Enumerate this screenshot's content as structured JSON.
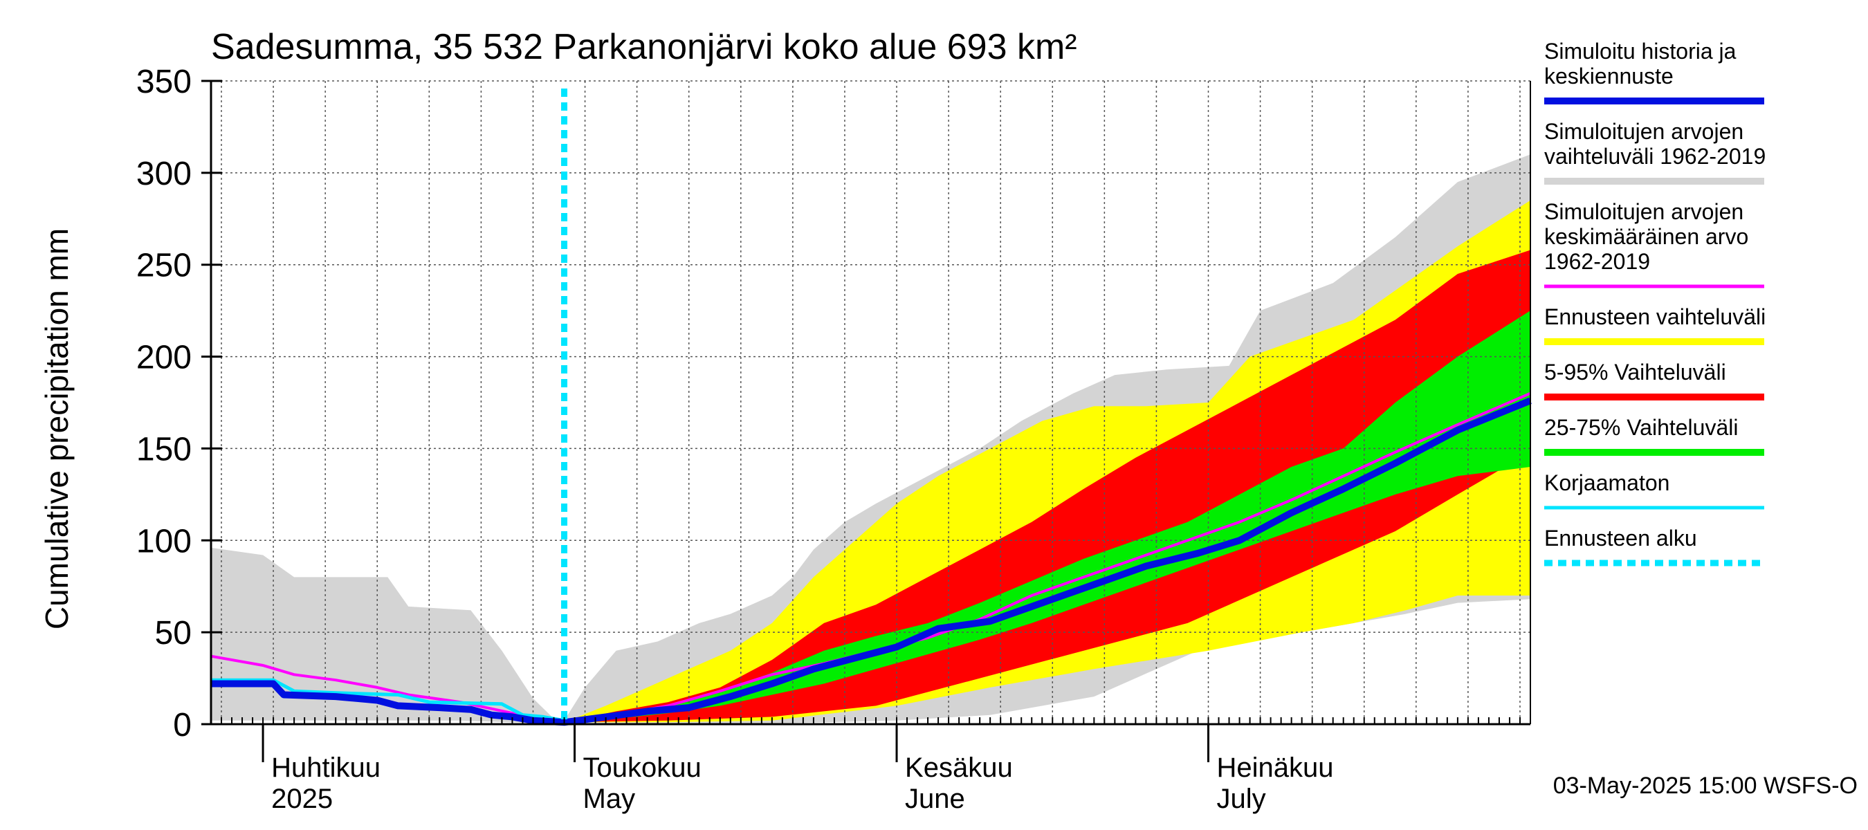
{
  "chart_data": {
    "type": "area",
    "title": "Sadesumma, 35 532 Parkanonjärvi koko alue 693 km²",
    "ylabel": "Cumulative precipitation   mm",
    "ylim": [
      0,
      350
    ],
    "yticks": [
      "0",
      "50",
      "100",
      "150",
      "200",
      "250",
      "300",
      "350"
    ],
    "xlim": [
      "2025-03-27",
      "2025-08-01"
    ],
    "month_labels": [
      {
        "top": "Huhtikuu",
        "bottom": "2025",
        "date": "2025-04-01"
      },
      {
        "top": "Toukokuu",
        "bottom": "May",
        "date": "2025-05-01"
      },
      {
        "top": "Kesäkuu",
        "bottom": "June",
        "date": "2025-06-01"
      },
      {
        "top": "Heinäkuu",
        "bottom": "July",
        "date": "2025-07-01"
      }
    ],
    "month_boundaries": [
      "2025-04-01",
      "2025-05-01",
      "2025-06-01",
      "2025-07-01"
    ],
    "forecast_start": "2025-04-30",
    "timestamp": "03-May-2025 15:00 WSFS-O",
    "grid": true,
    "legend_position": "right",
    "legend": [
      {
        "key": "hist",
        "label": "Simuloitu historia ja\nkeskiennuste",
        "color": "#0010e0",
        "style": "line"
      },
      {
        "key": "range_all",
        "label": "Simuloitujen arvojen\nvaihteluväli 1962-2019",
        "color": "#d4d4d4",
        "style": "line"
      },
      {
        "key": "mean",
        "label": "Simuloitujen arvojen\nkeskimääräinen arvo\n   1962-2019",
        "color": "#ff00ff",
        "style": "line"
      },
      {
        "key": "fc_range",
        "label": "Ennusteen vaihteluväli",
        "color": "#ffff00",
        "style": "line"
      },
      {
        "key": "p5_95",
        "label": "5-95% Vaihteluväli",
        "color": "#ff0000",
        "style": "line"
      },
      {
        "key": "p25_75",
        "label": "25-75% Vaihteluväli",
        "color": "#00ee00",
        "style": "line"
      },
      {
        "key": "raw",
        "label": "Korjaamaton",
        "color": "#00e5ff",
        "style": "line"
      },
      {
        "key": "fc_start",
        "label": "Ennusteen alku",
        "color": "#00e5ff",
        "style": "dotted"
      }
    ],
    "bands": [
      {
        "key": "range_all",
        "color": "#d4d4d4",
        "upper": [
          [
            "2025-03-27",
            96
          ],
          [
            "2025-04-01",
            92
          ],
          [
            "2025-04-04",
            80
          ],
          [
            "2025-04-13",
            80
          ],
          [
            "2025-04-15",
            64
          ],
          [
            "2025-04-21",
            62
          ],
          [
            "2025-04-24",
            40
          ],
          [
            "2025-04-27",
            14
          ],
          [
            "2025-04-29",
            3
          ],
          [
            "2025-04-30",
            2
          ],
          [
            "2025-05-02",
            20
          ],
          [
            "2025-05-05",
            40
          ],
          [
            "2025-05-09",
            45
          ],
          [
            "2025-05-13",
            55
          ],
          [
            "2025-05-16",
            60
          ],
          [
            "2025-05-20",
            70
          ],
          [
            "2025-05-22",
            80
          ],
          [
            "2025-05-24",
            95
          ],
          [
            "2025-05-27",
            110
          ],
          [
            "2025-05-30",
            120
          ],
          [
            "2025-06-04",
            135
          ],
          [
            "2025-06-09",
            150
          ],
          [
            "2025-06-13",
            165
          ],
          [
            "2025-06-18",
            180
          ],
          [
            "2025-06-22",
            190
          ],
          [
            "2025-06-27",
            193
          ],
          [
            "2025-07-03",
            195
          ],
          [
            "2025-07-06",
            225
          ],
          [
            "2025-07-13",
            240
          ],
          [
            "2025-07-19",
            265
          ],
          [
            "2025-07-25",
            295
          ],
          [
            "2025-08-01",
            310
          ]
        ],
        "lower": [
          [
            "2025-03-27",
            2
          ],
          [
            "2025-04-20",
            2
          ],
          [
            "2025-04-30",
            0
          ],
          [
            "2025-05-15",
            0
          ],
          [
            "2025-05-25",
            1
          ],
          [
            "2025-06-01",
            2
          ],
          [
            "2025-06-10",
            5
          ],
          [
            "2025-06-20",
            15
          ],
          [
            "2025-06-30",
            40
          ],
          [
            "2025-07-05",
            45
          ],
          [
            "2025-07-15",
            55
          ],
          [
            "2025-07-20",
            60
          ],
          [
            "2025-07-25",
            66
          ],
          [
            "2025-08-01",
            68
          ]
        ]
      },
      {
        "key": "fc_range",
        "color": "#ffff00",
        "upper": [
          [
            "2025-04-30",
            1
          ],
          [
            "2025-05-04",
            10
          ],
          [
            "2025-05-08",
            20
          ],
          [
            "2025-05-12",
            30
          ],
          [
            "2025-05-16",
            40
          ],
          [
            "2025-05-20",
            55
          ],
          [
            "2025-05-24",
            80
          ],
          [
            "2025-05-28",
            100
          ],
          [
            "2025-06-01",
            120
          ],
          [
            "2025-06-05",
            135
          ],
          [
            "2025-06-10",
            150
          ],
          [
            "2025-06-15",
            165
          ],
          [
            "2025-06-20",
            173
          ],
          [
            "2025-06-25",
            173
          ],
          [
            "2025-07-01",
            175
          ],
          [
            "2025-07-05",
            200
          ],
          [
            "2025-07-10",
            210
          ],
          [
            "2025-07-15",
            220
          ],
          [
            "2025-07-20",
            240
          ],
          [
            "2025-07-25",
            260
          ],
          [
            "2025-08-01",
            285
          ]
        ],
        "lower": [
          [
            "2025-04-30",
            1
          ],
          [
            "2025-05-10",
            1
          ],
          [
            "2025-05-20",
            2
          ],
          [
            "2025-06-01",
            10
          ],
          [
            "2025-06-10",
            20
          ],
          [
            "2025-06-20",
            30
          ],
          [
            "2025-07-01",
            40
          ],
          [
            "2025-07-10",
            50
          ],
          [
            "2025-07-15",
            55
          ],
          [
            "2025-07-20",
            62
          ],
          [
            "2025-07-25",
            70
          ],
          [
            "2025-08-01",
            70
          ]
        ]
      },
      {
        "key": "p5_95",
        "color": "#ff0000",
        "upper": [
          [
            "2025-04-30",
            1
          ],
          [
            "2025-05-05",
            7
          ],
          [
            "2025-05-10",
            12
          ],
          [
            "2025-05-15",
            20
          ],
          [
            "2025-05-20",
            35
          ],
          [
            "2025-05-25",
            55
          ],
          [
            "2025-05-30",
            65
          ],
          [
            "2025-06-04",
            80
          ],
          [
            "2025-06-09",
            95
          ],
          [
            "2025-06-14",
            110
          ],
          [
            "2025-06-19",
            128
          ],
          [
            "2025-06-24",
            145
          ],
          [
            "2025-06-29",
            160
          ],
          [
            "2025-07-04",
            175
          ],
          [
            "2025-07-09",
            190
          ],
          [
            "2025-07-14",
            205
          ],
          [
            "2025-07-19",
            220
          ],
          [
            "2025-07-25",
            245
          ],
          [
            "2025-08-01",
            258
          ]
        ],
        "lower": [
          [
            "2025-04-30",
            1
          ],
          [
            "2025-05-10",
            2
          ],
          [
            "2025-05-20",
            4
          ],
          [
            "2025-05-30",
            10
          ],
          [
            "2025-06-09",
            25
          ],
          [
            "2025-06-19",
            40
          ],
          [
            "2025-06-29",
            55
          ],
          [
            "2025-07-09",
            80
          ],
          [
            "2025-07-19",
            105
          ],
          [
            "2025-07-25",
            125
          ],
          [
            "2025-08-01",
            148
          ]
        ]
      },
      {
        "key": "p25_75",
        "color": "#00ee00",
        "upper": [
          [
            "2025-04-30",
            1
          ],
          [
            "2025-05-05",
            5
          ],
          [
            "2025-05-10",
            10
          ],
          [
            "2025-05-15",
            18
          ],
          [
            "2025-05-20",
            28
          ],
          [
            "2025-05-25",
            40
          ],
          [
            "2025-05-30",
            48
          ],
          [
            "2025-06-04",
            55
          ],
          [
            "2025-06-09",
            66
          ],
          [
            "2025-06-14",
            78
          ],
          [
            "2025-06-19",
            90
          ],
          [
            "2025-06-24",
            100
          ],
          [
            "2025-06-29",
            110
          ],
          [
            "2025-07-04",
            125
          ],
          [
            "2025-07-09",
            140
          ],
          [
            "2025-07-14",
            150
          ],
          [
            "2025-07-19",
            175
          ],
          [
            "2025-07-25",
            200
          ],
          [
            "2025-08-01",
            225
          ]
        ],
        "lower": [
          [
            "2025-04-30",
            1
          ],
          [
            "2025-05-05",
            3
          ],
          [
            "2025-05-10",
            6
          ],
          [
            "2025-05-15",
            10
          ],
          [
            "2025-05-20",
            16
          ],
          [
            "2025-05-25",
            22
          ],
          [
            "2025-05-30",
            30
          ],
          [
            "2025-06-04",
            38
          ],
          [
            "2025-06-09",
            46
          ],
          [
            "2025-06-14",
            55
          ],
          [
            "2025-06-19",
            65
          ],
          [
            "2025-06-24",
            75
          ],
          [
            "2025-06-29",
            85
          ],
          [
            "2025-07-04",
            95
          ],
          [
            "2025-07-09",
            105
          ],
          [
            "2025-07-14",
            115
          ],
          [
            "2025-07-19",
            125
          ],
          [
            "2025-07-25",
            135
          ],
          [
            "2025-08-01",
            140
          ]
        ]
      }
    ],
    "series": [
      {
        "key": "mean",
        "color": "#ff00ff",
        "points": [
          [
            "2025-03-27",
            37
          ],
          [
            "2025-04-01",
            32
          ],
          [
            "2025-04-04",
            27
          ],
          [
            "2025-04-08",
            24
          ],
          [
            "2025-04-12",
            20
          ],
          [
            "2025-04-15",
            16
          ],
          [
            "2025-04-20",
            12
          ],
          [
            "2025-04-25",
            6
          ],
          [
            "2025-04-29",
            2
          ],
          [
            "2025-04-30",
            1
          ],
          [
            "2025-05-05",
            5
          ],
          [
            "2025-05-10",
            10
          ],
          [
            "2025-05-15",
            18
          ],
          [
            "2025-05-20",
            27
          ],
          [
            "2025-05-25",
            33
          ],
          [
            "2025-05-30",
            40
          ],
          [
            "2025-06-04",
            47
          ],
          [
            "2025-06-09",
            57
          ],
          [
            "2025-06-14",
            70
          ],
          [
            "2025-06-19",
            80
          ],
          [
            "2025-06-24",
            90
          ],
          [
            "2025-06-29",
            100
          ],
          [
            "2025-07-04",
            110
          ],
          [
            "2025-07-09",
            122
          ],
          [
            "2025-07-14",
            135
          ],
          [
            "2025-07-19",
            148
          ],
          [
            "2025-07-25",
            163
          ],
          [
            "2025-08-01",
            180
          ]
        ]
      },
      {
        "key": "raw",
        "color": "#00e5ff",
        "points": [
          [
            "2025-03-27",
            24
          ],
          [
            "2025-04-02",
            24
          ],
          [
            "2025-04-04",
            18
          ],
          [
            "2025-04-08",
            17
          ],
          [
            "2025-04-14",
            16
          ],
          [
            "2025-04-17",
            12
          ],
          [
            "2025-04-24",
            11
          ],
          [
            "2025-04-26",
            5
          ],
          [
            "2025-04-28",
            4
          ],
          [
            "2025-04-30",
            2
          ]
        ]
      },
      {
        "key": "hist",
        "color": "#0010e0",
        "points": [
          [
            "2025-03-27",
            22
          ],
          [
            "2025-04-02",
            22
          ],
          [
            "2025-04-03",
            16
          ],
          [
            "2025-04-08",
            15
          ],
          [
            "2025-04-12",
            13
          ],
          [
            "2025-04-14",
            10
          ],
          [
            "2025-04-18",
            9
          ],
          [
            "2025-04-21",
            8
          ],
          [
            "2025-04-23",
            5
          ],
          [
            "2025-04-25",
            4
          ],
          [
            "2025-04-27",
            2
          ],
          [
            "2025-04-30",
            1
          ],
          [
            "2025-05-04",
            4
          ],
          [
            "2025-05-08",
            7
          ],
          [
            "2025-05-12",
            9
          ],
          [
            "2025-05-16",
            15
          ],
          [
            "2025-05-20",
            22
          ],
          [
            "2025-05-24",
            30
          ],
          [
            "2025-05-28",
            36
          ],
          [
            "2025-06-01",
            42
          ],
          [
            "2025-06-05",
            52
          ],
          [
            "2025-06-10",
            56
          ],
          [
            "2025-06-15",
            66
          ],
          [
            "2025-06-20",
            76
          ],
          [
            "2025-06-25",
            86
          ],
          [
            "2025-06-30",
            93
          ],
          [
            "2025-07-04",
            100
          ],
          [
            "2025-07-09",
            115
          ],
          [
            "2025-07-14",
            128
          ],
          [
            "2025-07-19",
            142
          ],
          [
            "2025-07-25",
            160
          ],
          [
            "2025-08-01",
            176
          ]
        ]
      }
    ]
  }
}
